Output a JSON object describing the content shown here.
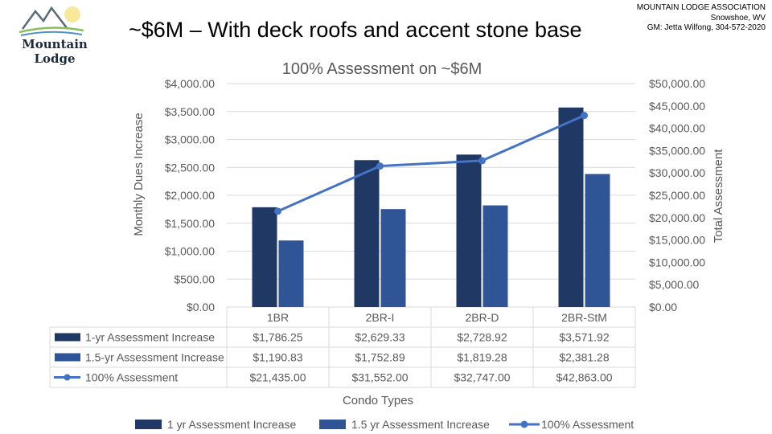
{
  "slide": {
    "logo_text": "Mountain Lodge",
    "title": "~$6M – With deck roofs and accent stone base",
    "org_lines": [
      "MOUNTAIN LODGE ASSOCIATION",
      "Snowshoe, WV",
      "GM: Jetta Wilfong, 304-572-2020"
    ]
  },
  "colors": {
    "series_1yr": "#1f3864",
    "series_15yr": "#2f5597",
    "series_line": "#4472c4",
    "grid": "#d9d9d9",
    "text": "#595959"
  },
  "chart_data": {
    "type": "bar",
    "title": "100% Assessment on ~$6M",
    "xlabel": "Condo Types",
    "ylabel": "Monthly Dues Increase",
    "y2label": "Total Assessment",
    "categories": [
      "1BR",
      "2BR-I",
      "2BR-D",
      "2BR-StM"
    ],
    "ylim": [
      0,
      4000
    ],
    "y2lim": [
      0,
      50000
    ],
    "y_ticks": [
      "$0.00",
      "$500.00",
      "$1,000.00",
      "$1,500.00",
      "$2,000.00",
      "$2,500.00",
      "$3,000.00",
      "$3,500.00",
      "$4,000.00"
    ],
    "y2_ticks": [
      "$0.00",
      "$5,000.00",
      "$10,000.00",
      "$15,000.00",
      "$20,000.00",
      "$25,000.00",
      "$30,000.00",
      "$35,000.00",
      "$40,000.00",
      "$45,000.00",
      "$50,000.00"
    ],
    "grid": true,
    "legend": "bottom",
    "series": [
      {
        "name": "1 yr Assessment Increase",
        "table_name": "1-yr Assessment Increase",
        "type": "bar",
        "axis": "left",
        "values": [
          1786.25,
          2629.33,
          2728.92,
          3571.92
        ],
        "labels": [
          "$1,786.25",
          "$2,629.33",
          "$2,728.92",
          "$3,571.92"
        ]
      },
      {
        "name": "1.5 yr Assessment Increase",
        "table_name": "1.5-yr Assessment Increase",
        "type": "bar",
        "axis": "left",
        "values": [
          1190.83,
          1752.89,
          1819.28,
          2381.28
        ],
        "labels": [
          "$1,190.83",
          "$1,752.89",
          "$1,819.28",
          "$2,381.28"
        ]
      },
      {
        "name": "100% Assessment",
        "table_name": "100% Assessment",
        "type": "line",
        "axis": "right",
        "values": [
          21435,
          31552,
          32747,
          42863
        ],
        "labels": [
          "$21,435.00",
          "$31,552.00",
          "$32,747.00",
          "$42,863.00"
        ]
      }
    ]
  }
}
